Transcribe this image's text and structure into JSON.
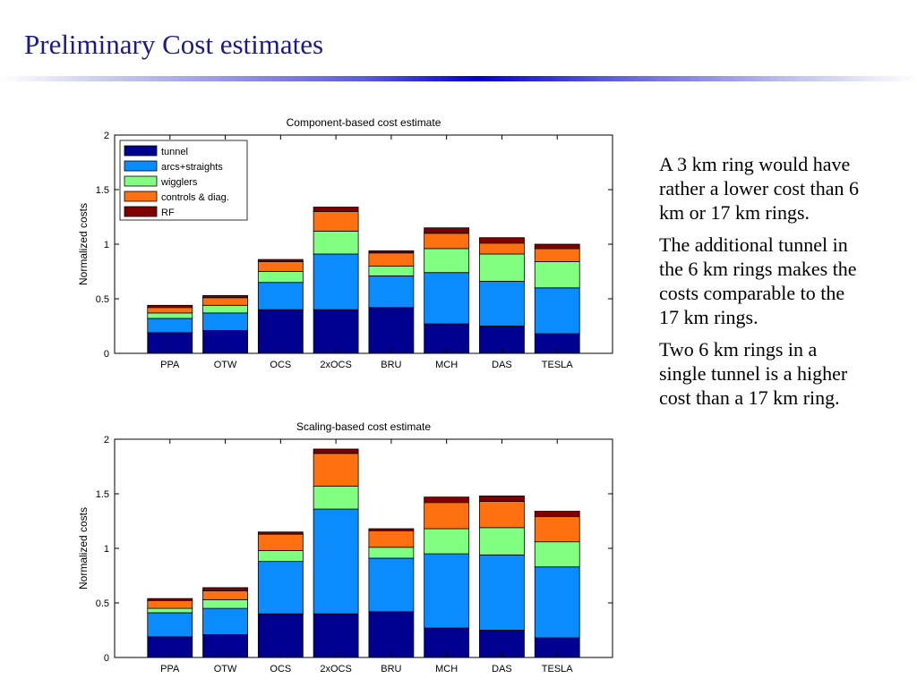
{
  "slide": {
    "title": "Preliminary Cost estimates",
    "paragraphs": [
      "A 3 km ring would have rather a lower cost than 6 km or 17 km rings.",
      "The additional tunnel in the 6 km rings makes the costs comparable to the 17 km rings.",
      "Two 6 km rings in a single tunnel is a higher cost than a 17 km ring."
    ]
  },
  "chart_data": [
    {
      "type": "bar",
      "stacked": true,
      "title": "Component-based cost estimate",
      "xlabel": "",
      "ylabel": "Normalized costs",
      "ylim": [
        0,
        2
      ],
      "yticks": [
        0,
        0.5,
        1,
        1.5,
        2
      ],
      "ytick_labels": [
        "0",
        "0.5",
        "1",
        "1.5",
        "2"
      ],
      "grid": false,
      "legend_position": "top-left",
      "categories": [
        "PPA",
        "OTW",
        "OCS",
        "2xOCS",
        "BRU",
        "MCH",
        "DAS",
        "TESLA"
      ],
      "series": [
        {
          "name": "tunnel",
          "color": "#000090",
          "values": [
            0.19,
            0.21,
            0.4,
            0.4,
            0.42,
            0.27,
            0.25,
            0.18
          ]
        },
        {
          "name": "arcs+straights",
          "color": "#0a8cff",
          "values": [
            0.13,
            0.16,
            0.25,
            0.51,
            0.29,
            0.47,
            0.41,
            0.42
          ]
        },
        {
          "name": "wigglers",
          "color": "#80ff80",
          "values": [
            0.05,
            0.07,
            0.1,
            0.21,
            0.09,
            0.22,
            0.25,
            0.24
          ]
        },
        {
          "name": "controls & diag.",
          "color": "#ff7010",
          "values": [
            0.05,
            0.07,
            0.09,
            0.18,
            0.12,
            0.14,
            0.1,
            0.12
          ]
        },
        {
          "name": "RF",
          "color": "#800000",
          "values": [
            0.02,
            0.02,
            0.02,
            0.04,
            0.02,
            0.05,
            0.05,
            0.04
          ]
        }
      ]
    },
    {
      "type": "bar",
      "stacked": true,
      "title": "Scaling-based cost estimate",
      "xlabel": "",
      "ylabel": "Normalized costs",
      "ylim": [
        0,
        2
      ],
      "yticks": [
        0,
        0.5,
        1,
        1.5,
        2
      ],
      "ytick_labels": [
        "0",
        "0.5",
        "1",
        "1.5",
        "2"
      ],
      "grid": false,
      "categories": [
        "PPA",
        "OTW",
        "OCS",
        "2xOCS",
        "BRU",
        "MCH",
        "DAS",
        "TESLA"
      ],
      "series": [
        {
          "color": "#000090",
          "values": [
            0.19,
            0.21,
            0.4,
            0.4,
            0.42,
            0.27,
            0.25,
            0.18
          ]
        },
        {
          "color": "#0a8cff",
          "values": [
            0.22,
            0.24,
            0.48,
            0.96,
            0.49,
            0.68,
            0.69,
            0.65
          ]
        },
        {
          "color": "#80ff80",
          "values": [
            0.04,
            0.08,
            0.1,
            0.21,
            0.1,
            0.23,
            0.25,
            0.23
          ]
        },
        {
          "color": "#ff7010",
          "values": [
            0.07,
            0.08,
            0.15,
            0.3,
            0.15,
            0.24,
            0.24,
            0.23
          ]
        },
        {
          "color": "#800000",
          "values": [
            0.02,
            0.03,
            0.02,
            0.04,
            0.02,
            0.05,
            0.05,
            0.05
          ]
        }
      ]
    }
  ]
}
